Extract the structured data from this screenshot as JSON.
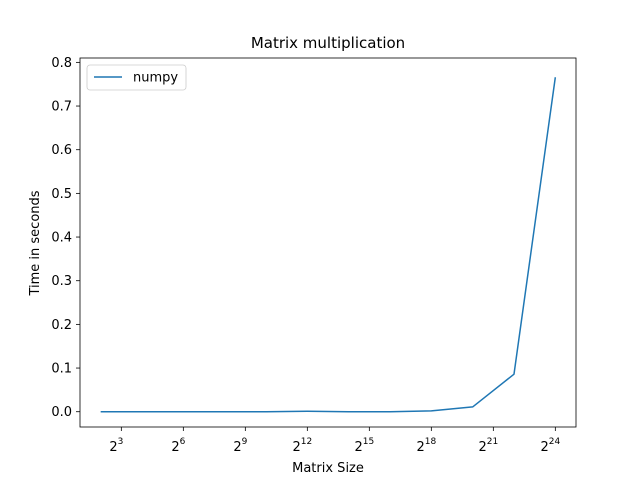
{
  "chart_data": {
    "type": "line",
    "title": "Matrix multiplication",
    "xlabel": "Matrix Size",
    "ylabel": "Time in seconds",
    "x_scale": "log2",
    "x_ticks": [
      {
        "value": 8,
        "base": "2",
        "exp": "3"
      },
      {
        "value": 64,
        "base": "2",
        "exp": "6"
      },
      {
        "value": 512,
        "base": "2",
        "exp": "9"
      },
      {
        "value": 4096,
        "base": "2",
        "exp": "12"
      },
      {
        "value": 32768,
        "base": "2",
        "exp": "15"
      },
      {
        "value": 262144,
        "base": "2",
        "exp": "18"
      },
      {
        "value": 2097152,
        "base": "2",
        "exp": "21"
      },
      {
        "value": 16777216,
        "base": "2",
        "exp": "24"
      }
    ],
    "y_ticks": [
      "0.0",
      "0.1",
      "0.2",
      "0.3",
      "0.4",
      "0.5",
      "0.6",
      "0.7",
      "0.8"
    ],
    "ylim": [
      -0.035,
      0.81
    ],
    "xlim": [
      2,
      33554432
    ],
    "legend": {
      "position": "top-left"
    },
    "series": [
      {
        "name": "numpy",
        "color": "#1f77b4",
        "x": [
          4,
          16,
          64,
          256,
          1024,
          4096,
          16384,
          65536,
          262144,
          1048576,
          4194304,
          16777216
        ],
        "y": [
          0.0,
          0.0,
          0.0,
          0.0,
          0.0,
          0.001,
          0.0,
          0.0,
          0.002,
          0.011,
          0.086,
          0.766
        ]
      }
    ]
  }
}
